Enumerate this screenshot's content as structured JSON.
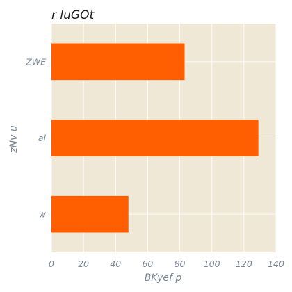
{
  "chart_data": {
    "type": "bar",
    "orientation": "horizontal",
    "title": "r luGOt",
    "xlabel": "BKyef p",
    "ylabel": "zNv u",
    "categories": [
      "ZWE",
      "al",
      "w"
    ],
    "values": [
      83,
      129,
      48
    ],
    "xlim": [
      0,
      140
    ],
    "xticks": [
      0,
      20,
      40,
      60,
      80,
      100,
      120,
      140
    ],
    "grid": true,
    "colors": {
      "bar": "#ff5f00",
      "plot_background": "#efe8d6",
      "grid": "#ffffff"
    }
  }
}
